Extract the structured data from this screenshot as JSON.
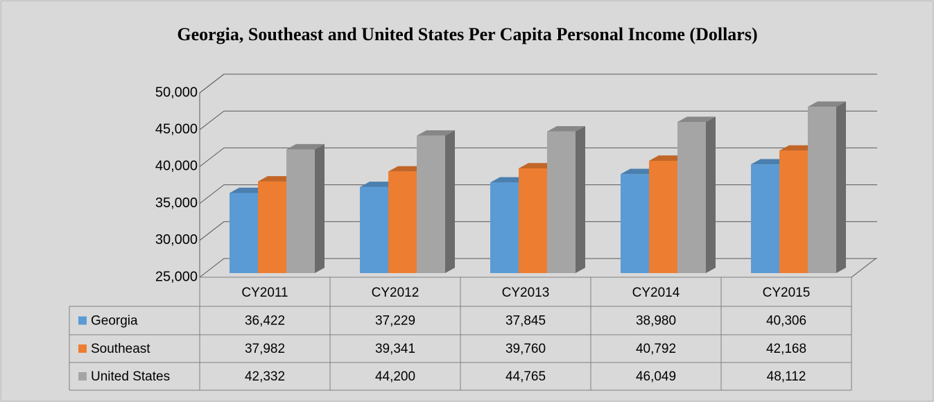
{
  "chart_data": {
    "type": "bar3d",
    "title": "Georgia, Southeast and United States Per Capita Personal Income (Dollars)",
    "categories": [
      "CY2011",
      "CY2012",
      "CY2013",
      "CY2014",
      "CY2015"
    ],
    "series": [
      {
        "name": "Georgia",
        "color": "#5b9bd5",
        "values": [
          36422,
          37229,
          37845,
          38980,
          40306
        ],
        "value_labels": [
          "36,422",
          "37,229",
          "37,845",
          "38,980",
          "40,306"
        ]
      },
      {
        "name": "Southeast",
        "color": "#ed7d31",
        "values": [
          37982,
          39341,
          39760,
          40792,
          42168
        ],
        "value_labels": [
          "37,982",
          "39,341",
          "39,760",
          "40,792",
          "42,168"
        ]
      },
      {
        "name": "United States",
        "color": "#a5a5a5",
        "values": [
          42332,
          44200,
          44765,
          46049,
          48112
        ],
        "value_labels": [
          "42,332",
          "44,200",
          "44,765",
          "46,049",
          "48,112"
        ]
      }
    ],
    "ylim": [
      25000,
      50000
    ],
    "yticks": [
      {
        "value": 25000,
        "label": "25,000"
      },
      {
        "value": 30000,
        "label": "30,000"
      },
      {
        "value": 35000,
        "label": "35,000"
      },
      {
        "value": 40000,
        "label": "40,000"
      },
      {
        "value": 45000,
        "label": "45,000"
      },
      {
        "value": 50000,
        "label": "50,000"
      }
    ],
    "grid": true
  }
}
